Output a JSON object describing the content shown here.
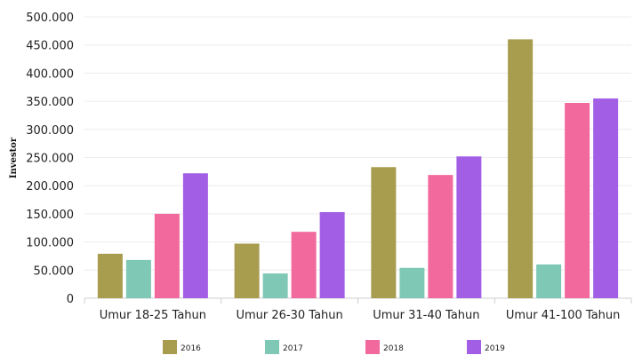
{
  "chart_data": {
    "type": "bar",
    "ylabel": "Investor",
    "xlabel": "",
    "categories": [
      "Umur 18-25 Tahun",
      "Umur 26-30 Tahun",
      "Umur 31-40 Tahun",
      "Umur 41-100 Tahun"
    ],
    "series": [
      {
        "name": "2016",
        "color": "#a89c4f",
        "values": [
          79000,
          97000,
          233000,
          460000
        ]
      },
      {
        "name": "2017",
        "color": "#7fc8b6",
        "values": [
          68000,
          44000,
          54000,
          60000
        ]
      },
      {
        "name": "2018",
        "color": "#f2699e",
        "values": [
          150000,
          118000,
          219000,
          347000
        ]
      },
      {
        "name": "2019",
        "color": "#a25fe6",
        "values": [
          222000,
          153000,
          252000,
          355000
        ]
      }
    ],
    "yticks": [
      0,
      50000,
      100000,
      150000,
      200000,
      250000,
      300000,
      350000,
      400000,
      450000,
      500000
    ],
    "ytick_labels": [
      "0",
      "50.000",
      "100.000",
      "150.000",
      "200.000",
      "250.000",
      "300.000",
      "350.000",
      "400.000",
      "450.000",
      "500.000"
    ],
    "ylim": [
      0,
      500000
    ],
    "grid": true,
    "legend_position": "bottom"
  }
}
